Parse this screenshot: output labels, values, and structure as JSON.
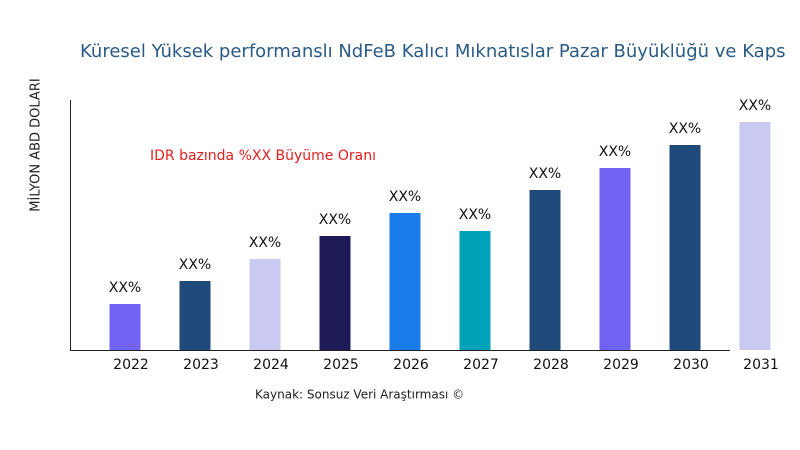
{
  "chart_data": {
    "type": "bar",
    "title": "Küresel Yüksek performanslı NdFeB Kalıcı Mıknatıslar Pazar Büyüklüğü ve Kaps",
    "y_label": "MİLYON ABD DOLARI",
    "annotation": "IDR bazında %XX Büyüme Oranı",
    "source": "Kaynak: Sonsuz Veri Araştırması ©",
    "categories": [
      "2022",
      "2023",
      "2024",
      "2025",
      "2026",
      "2027",
      "2028",
      "2029",
      "2030",
      "2031"
    ],
    "values": [
      46,
      69,
      91,
      114,
      137,
      119,
      160,
      182,
      205,
      228
    ],
    "value_labels": [
      "XX%",
      "XX%",
      "XX%",
      "XX%",
      "XX%",
      "XX%",
      "XX%",
      "XX%",
      "XX%",
      "XX%"
    ],
    "colors": [
      "#7262f2",
      "#1f4a7a",
      "#c9c9f1",
      "#1e1a58",
      "#1a7ce8",
      "#00a2ba",
      "#1f4a7a",
      "#7262f2",
      "#1f4a7a",
      "#c9c9f1"
    ],
    "ylim": [
      0,
      250
    ]
  }
}
